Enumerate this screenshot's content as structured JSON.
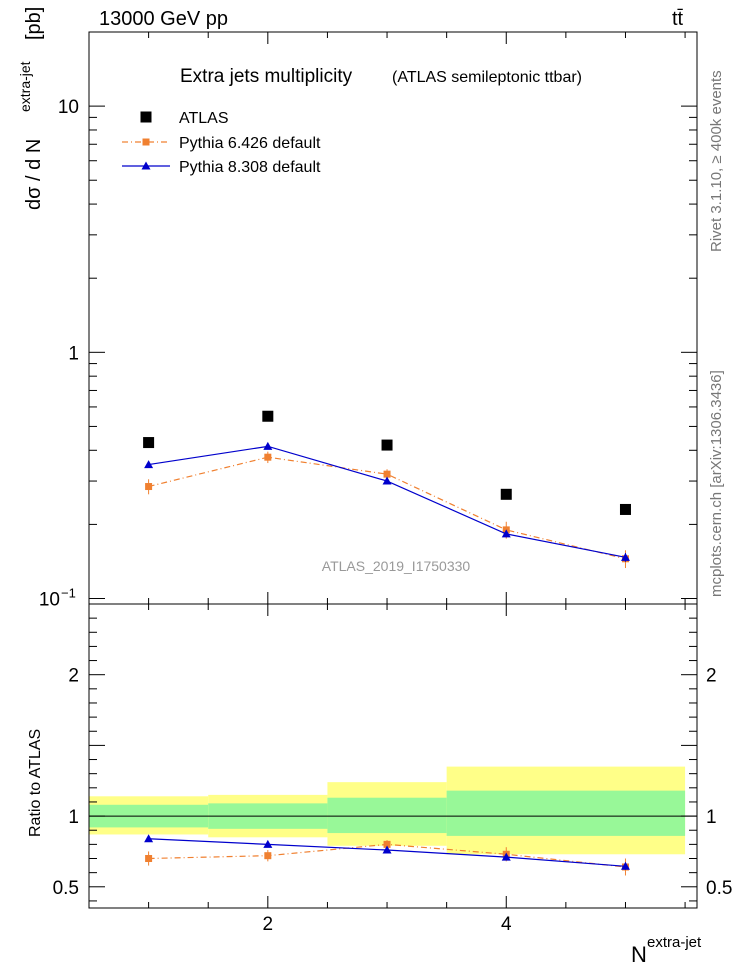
{
  "header": {
    "energy": "13000 GeV pp",
    "process": "tt̄"
  },
  "side": {
    "rivet": "Rivet 3.1.10, ≥ 400k events",
    "source": "mcplots.cern.ch [arXiv:1306.3436]"
  },
  "chart_data": {
    "type": "scatter",
    "title": "Extra jets multiplicity",
    "subtitle": "(ATLAS semileptonic ttbar)",
    "watermark": "ATLAS_2019_I1750330",
    "xlabel": "N",
    "xlabel_sup": "extra-jet",
    "xlim": [
      0.5,
      5.6
    ],
    "x_ticks": [
      2,
      4
    ],
    "main": {
      "ylabel": "dσ / d N",
      "ylabel_sup": "extra-jet",
      "ylabel_unit": "[pb]",
      "yscale": "log",
      "ylim": [
        0.095,
        20
      ],
      "y_tick_labels": [
        {
          "v": 10,
          "text": "10"
        },
        {
          "v": 1,
          "text": "1"
        },
        {
          "v": 0.1,
          "text": "10",
          "sup": "−1"
        }
      ]
    },
    "ratio": {
      "ylabel": "Ratio to ATLAS",
      "ylim": [
        0.35,
        2.5
      ],
      "y_tick_labels": [
        {
          "v": 0.5,
          "text": "0.5"
        },
        {
          "v": 1,
          "text": "1"
        },
        {
          "v": 2,
          "text": "2"
        }
      ],
      "bands": [
        {
          "x0": 0.5,
          "x1": 1.5,
          "inner": [
            0.92,
            1.08
          ],
          "outer": [
            0.87,
            1.14
          ]
        },
        {
          "x0": 1.5,
          "x1": 2.5,
          "inner": [
            0.91,
            1.09
          ],
          "outer": [
            0.85,
            1.15
          ]
        },
        {
          "x0": 2.5,
          "x1": 3.5,
          "inner": [
            0.88,
            1.13
          ],
          "outer": [
            0.79,
            1.24
          ]
        },
        {
          "x0": 3.5,
          "x1": 5.5,
          "inner": [
            0.86,
            1.18
          ],
          "outer": [
            0.73,
            1.35
          ]
        }
      ]
    },
    "series": [
      {
        "name": "ATLAS",
        "color": "#000000",
        "marker": "square",
        "x": [
          1,
          2,
          3,
          4,
          5
        ],
        "y": [
          0.43,
          0.55,
          0.42,
          0.265,
          0.23
        ]
      },
      {
        "name": "Pythia 6.426 default",
        "color": "#f08030",
        "marker": "square",
        "line": "dashdot",
        "x": [
          1,
          2,
          3,
          4,
          5
        ],
        "y": [
          0.285,
          0.375,
          0.32,
          0.19,
          0.145
        ],
        "yerr": [
          0.02,
          0.02,
          0.015,
          0.015,
          0.012
        ],
        "ratio": [
          0.7,
          0.72,
          0.8,
          0.73,
          0.64
        ],
        "ratio_err": [
          0.05,
          0.04,
          0.03,
          0.05,
          0.06
        ]
      },
      {
        "name": "Pythia 8.308 default",
        "color": "#0000cc",
        "marker": "triangle",
        "line": "solid",
        "x": [
          1,
          2,
          3,
          4,
          5
        ],
        "y": [
          0.35,
          0.415,
          0.3,
          0.183,
          0.147
        ],
        "yerr": [
          0.006,
          0.006,
          0.006,
          0.006,
          0.006
        ],
        "ratio": [
          0.84,
          0.8,
          0.76,
          0.71,
          0.645
        ],
        "ratio_err": [
          0.015,
          0.012,
          0.015,
          0.02,
          0.025
        ]
      }
    ]
  }
}
